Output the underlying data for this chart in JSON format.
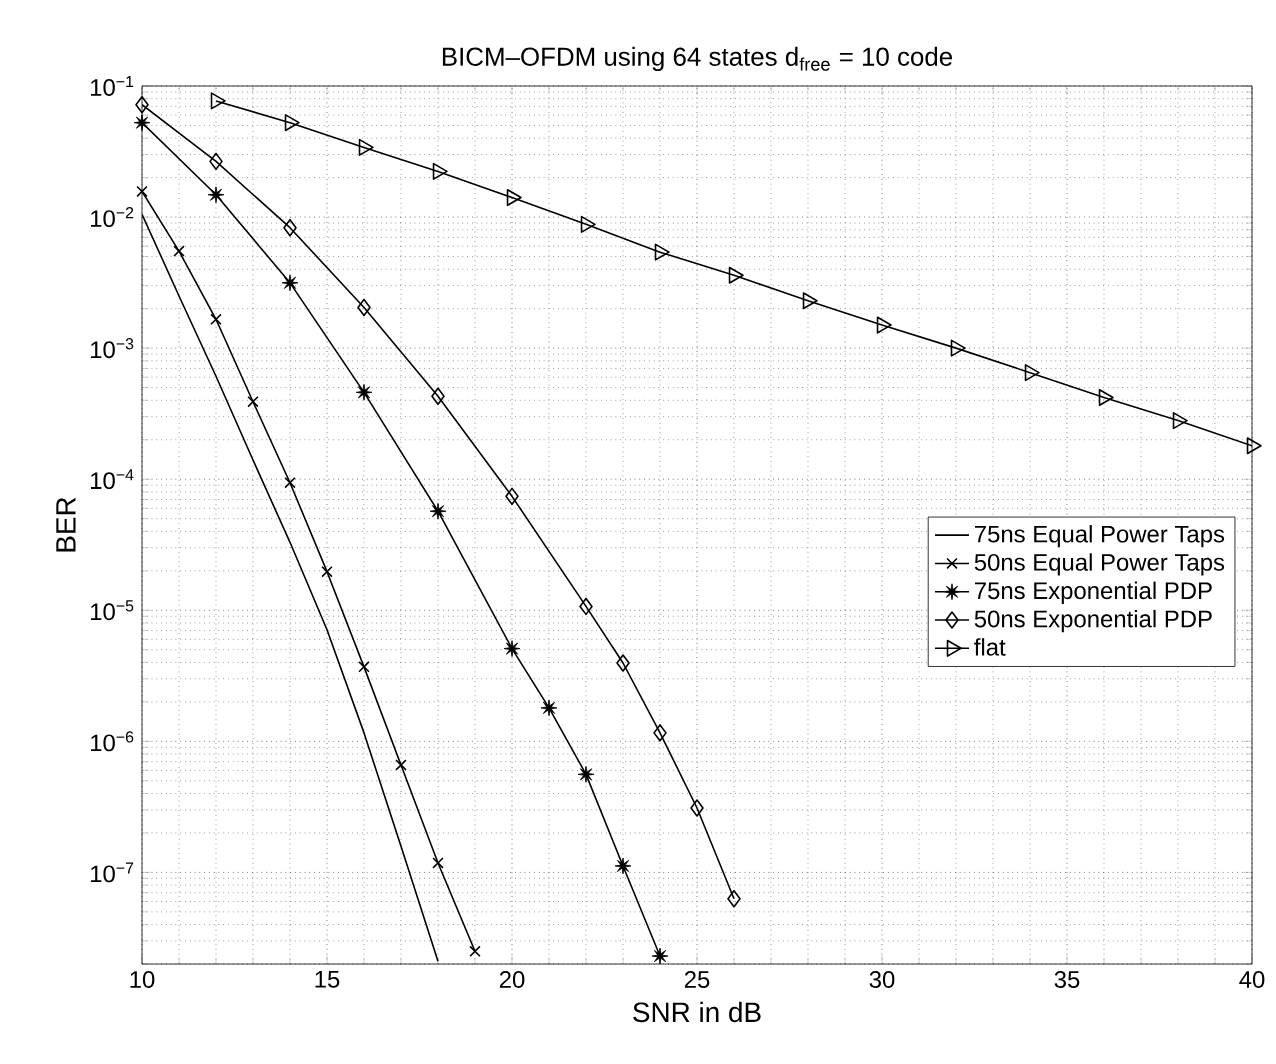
{
  "chart_data": {
    "type": "line",
    "title": "BICM–OFDM using 64 states d$_{free}$ = 10 code",
    "xlabel": "SNR in dB",
    "ylabel": "BER",
    "log": "y",
    "grid": true,
    "legend": "right",
    "line_style": "solid",
    "xlim": [
      10,
      40
    ],
    "xticks": [
      10,
      15,
      20,
      25,
      30,
      35,
      40
    ],
    "ylim": [
      2e-08,
      0.1
    ],
    "yticks": [
      {
        "value": 1e-07,
        "label": "10$^{−7}$"
      },
      {
        "value": 1e-06,
        "label": "10$^{−6}$"
      },
      {
        "value": 1e-05,
        "label": "10$^{−5}$"
      },
      {
        "value": 0.0001,
        "label": "10$^{−4}$"
      },
      {
        "value": 0.001,
        "label": "10$^{−3}$"
      },
      {
        "value": 0.01,
        "label": "10$^{−2}$"
      },
      {
        "value": 0.1,
        "label": "10$^{−1}$"
      }
    ],
    "series": [
      {
        "name": "75ns Equal Power Taps",
        "color": "#000000",
        "marker": "none",
        "x": [
          10,
          11,
          12,
          13,
          14,
          15,
          16,
          17,
          18
        ],
        "values": [
          0.0105,
          0.0025,
          0.00061,
          0.00014,
          3.3e-05,
          7.1e-06,
          1.16e-06,
          1.58e-07,
          2.1e-08
        ]
      },
      {
        "name": "50ns Equal Power Taps",
        "color": "#000000",
        "marker": "cross",
        "x": [
          10,
          11,
          12,
          13,
          14,
          15,
          16,
          17,
          18,
          19
        ],
        "values": [
          0.0157,
          0.0055,
          0.00166,
          0.00039,
          9.4e-05,
          1.97e-05,
          3.7e-06,
          6.6e-07,
          1.18e-07,
          2.5e-08
        ]
      },
      {
        "name": "75ns Exponential PDP",
        "color": "#000000",
        "marker": "star",
        "x": [
          10,
          12,
          14,
          16,
          18,
          20,
          21,
          22,
          23,
          24
        ],
        "values": [
          0.0525,
          0.0148,
          0.00315,
          0.00046,
          5.7e-05,
          5.1e-06,
          1.8e-06,
          5.6e-07,
          1.12e-07,
          2.3e-08
        ]
      },
      {
        "name": "50ns Exponential PDP",
        "color": "#000000",
        "marker": "diamond",
        "x": [
          10,
          12,
          14,
          16,
          18,
          20,
          22,
          23,
          24,
          25,
          26
        ],
        "values": [
          0.072,
          0.0266,
          0.0083,
          0.00204,
          0.00043,
          7.4e-05,
          1.07e-05,
          3.96e-06,
          1.16e-06,
          3.1e-07,
          6.3e-08
        ]
      },
      {
        "name": "flat",
        "color": "#000000",
        "marker": "triangle",
        "x": [
          12,
          14,
          16,
          18,
          20,
          22,
          24,
          26,
          28,
          30,
          32,
          34,
          36,
          38,
          40
        ],
        "values": [
          0.077,
          0.0525,
          0.034,
          0.0223,
          0.0141,
          0.0088,
          0.0054,
          0.0036,
          0.0023,
          0.0015,
          0.001,
          0.00065,
          0.00042,
          0.00028,
          0.00018
        ]
      }
    ]
  }
}
